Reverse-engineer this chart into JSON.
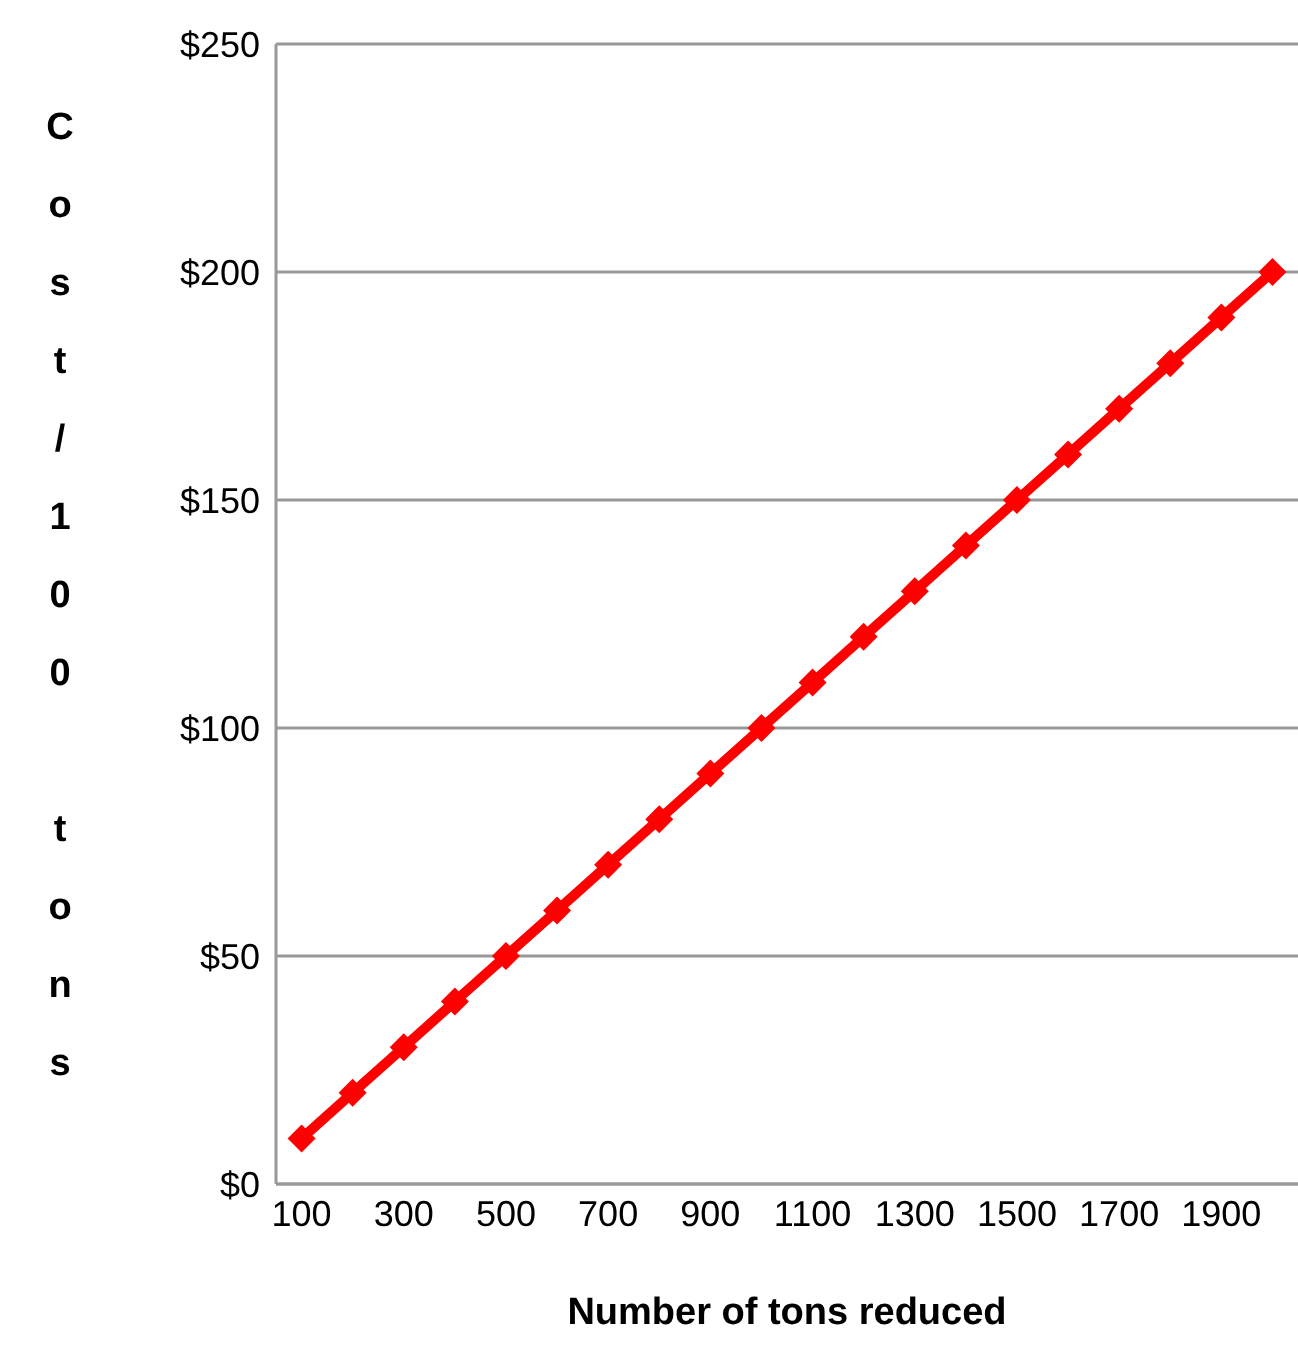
{
  "chart_data": {
    "type": "line",
    "xlabel": "Number of tons reduced",
    "ylabel": "Cost/100 tons",
    "categories": [
      "100",
      null,
      "300",
      null,
      "500",
      null,
      "700",
      null,
      "900",
      null,
      "1100",
      null,
      "1300",
      null,
      "1500",
      null,
      "1700",
      null,
      "1900",
      null
    ],
    "series": [
      {
        "color": "#ff0000",
        "values": [
          10,
          20,
          30,
          40,
          50,
          60,
          70,
          80,
          90,
          100,
          110,
          120,
          130,
          140,
          150,
          160,
          170,
          180,
          190,
          200
        ]
      }
    ],
    "ylim": [
      0,
      250
    ],
    "yticks": [
      {
        "value": 0,
        "label": "$0"
      },
      {
        "value": 50,
        "label": "$50"
      },
      {
        "value": 100,
        "label": "$100"
      },
      {
        "value": 150,
        "label": "$150"
      },
      {
        "value": 200,
        "label": "$200"
      },
      {
        "value": 250,
        "label": "$250"
      }
    ],
    "grid": "y",
    "legend": false,
    "marker": "diamond",
    "line_style": "solid"
  }
}
